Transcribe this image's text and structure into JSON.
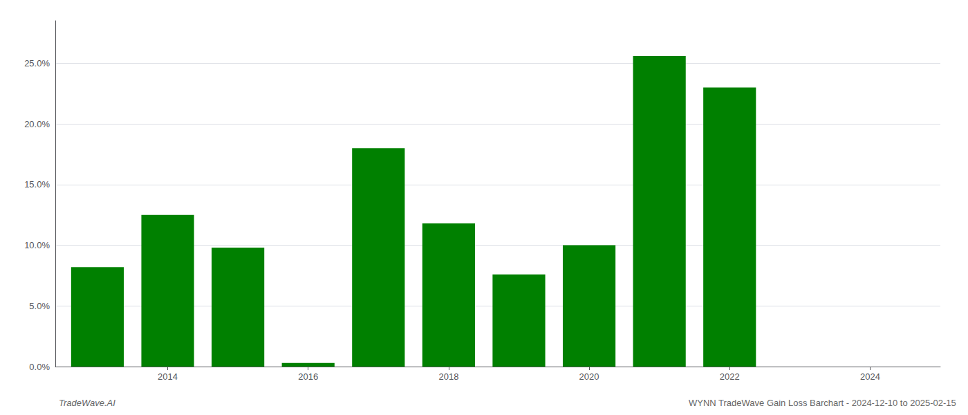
{
  "chart_data": {
    "type": "bar",
    "title": "WYNN TradeWave Gain Loss Barchart - 2024-12-10 to 2025-02-15",
    "annotations": [
      "TradeWave.AI"
    ],
    "x": [
      2013,
      2014,
      2015,
      2016,
      2017,
      2018,
      2019,
      2020,
      2021,
      2022,
      2023
    ],
    "values": [
      0.082,
      0.125,
      0.098,
      0.003,
      0.18,
      0.118,
      0.076,
      0.1,
      0.256,
      0.23,
      0.0
    ],
    "color": "#008000",
    "xlim": [
      2012.4,
      2025.0
    ],
    "xticks": [
      2014,
      2016,
      2018,
      2020,
      2022,
      2024
    ],
    "ylim": [
      0,
      0.285
    ],
    "yticks": [
      {
        "value": 0.0,
        "label": "0.0%"
      },
      {
        "value": 0.05,
        "label": "5.0%"
      },
      {
        "value": 0.1,
        "label": "10.0%"
      },
      {
        "value": 0.15,
        "label": "15.0%"
      },
      {
        "value": 0.2,
        "label": "20.0%"
      },
      {
        "value": 0.25,
        "label": "25.0%"
      }
    ],
    "grid": true
  }
}
